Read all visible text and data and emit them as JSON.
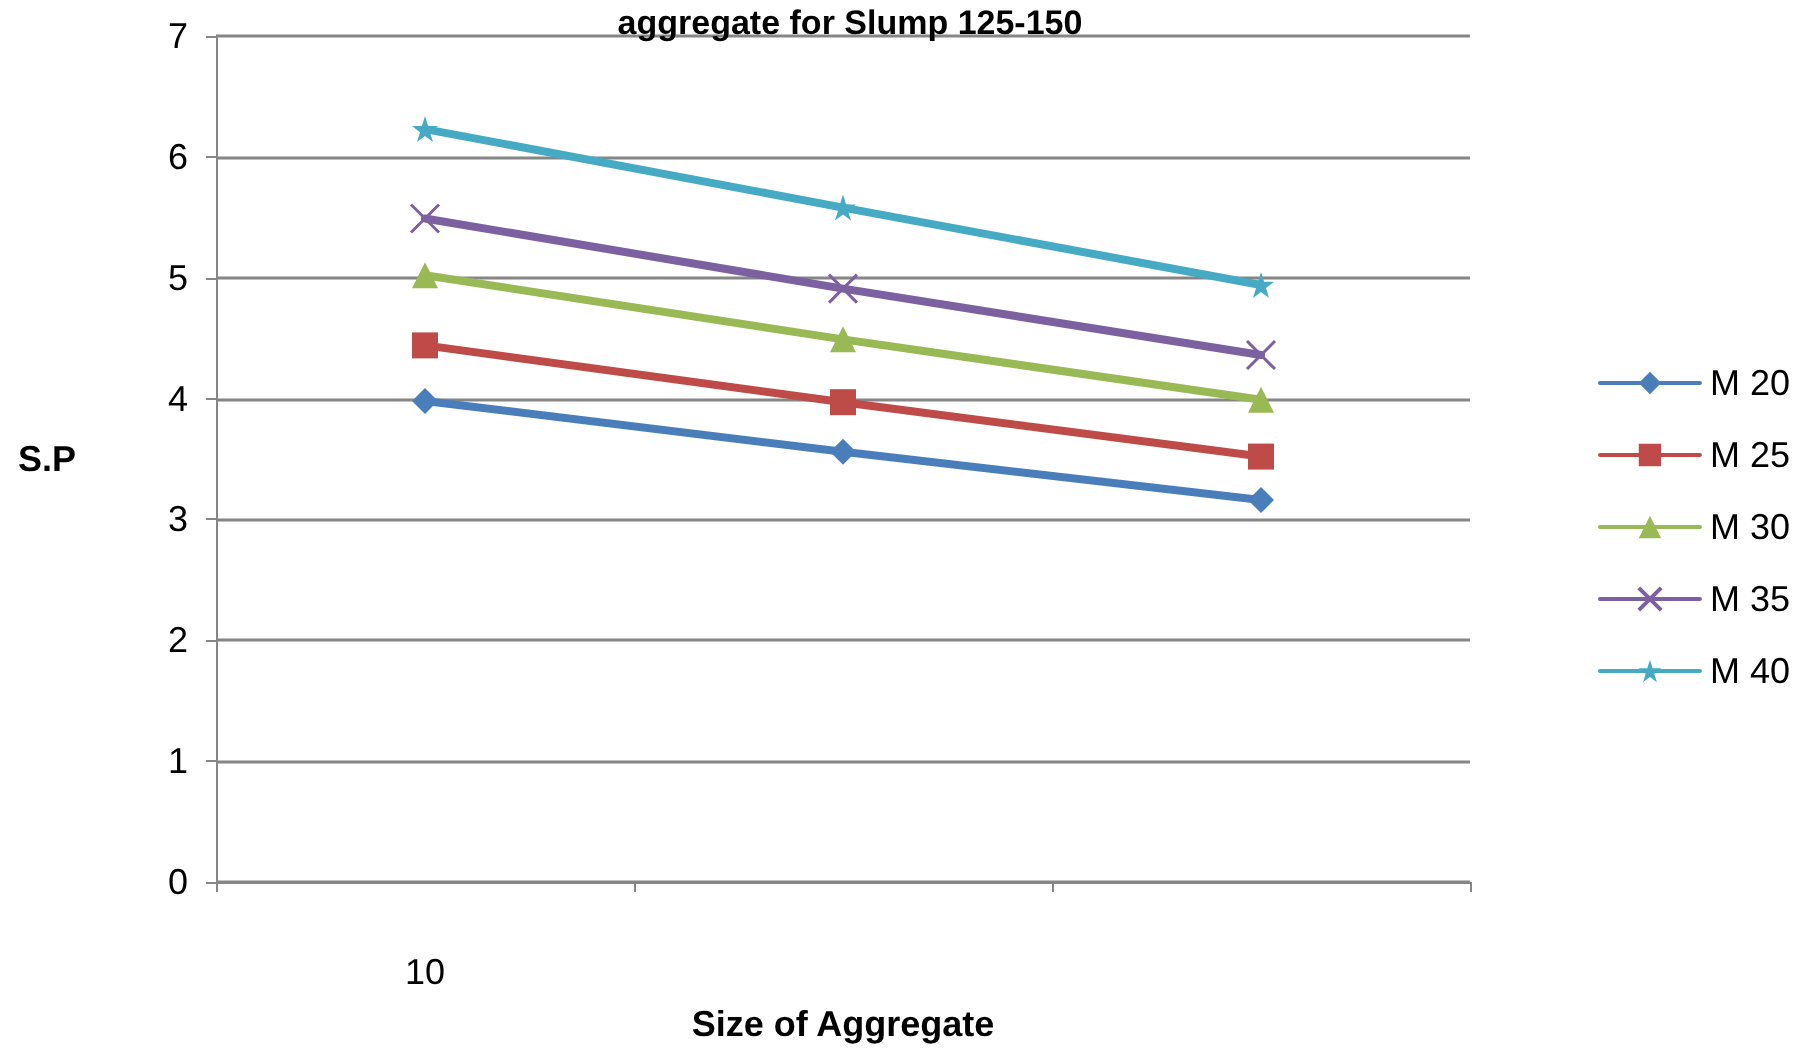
{
  "chart_data": {
    "type": "line",
    "title": "aggregate for Slump 125-150",
    "xlabel": "Size of Aggregate",
    "ylabel": "S.P",
    "categories": [
      "10",
      null,
      null
    ],
    "series": [
      {
        "name": "M 20",
        "color": "#4a7ebb",
        "marker": "diamond",
        "values": [
          3.98,
          3.56,
          3.16
        ]
      },
      {
        "name": "M 25",
        "color": "#be4b48",
        "marker": "square",
        "values": [
          4.44,
          3.97,
          3.52
        ]
      },
      {
        "name": "M 30",
        "color": "#98b954",
        "marker": "triangle",
        "values": [
          5.02,
          4.49,
          3.99
        ]
      },
      {
        "name": "M 35",
        "color": "#7d60a0",
        "marker": "cross",
        "values": [
          5.49,
          4.91,
          4.36
        ]
      },
      {
        "name": "M 40",
        "color": "#46aac5",
        "marker": "star",
        "values": [
          6.23,
          5.58,
          4.94
        ]
      }
    ],
    "ylim": [
      0,
      7
    ],
    "yticks": [
      0,
      1,
      2,
      3,
      4,
      5,
      6,
      7
    ],
    "grid": "y",
    "legend": "right"
  }
}
